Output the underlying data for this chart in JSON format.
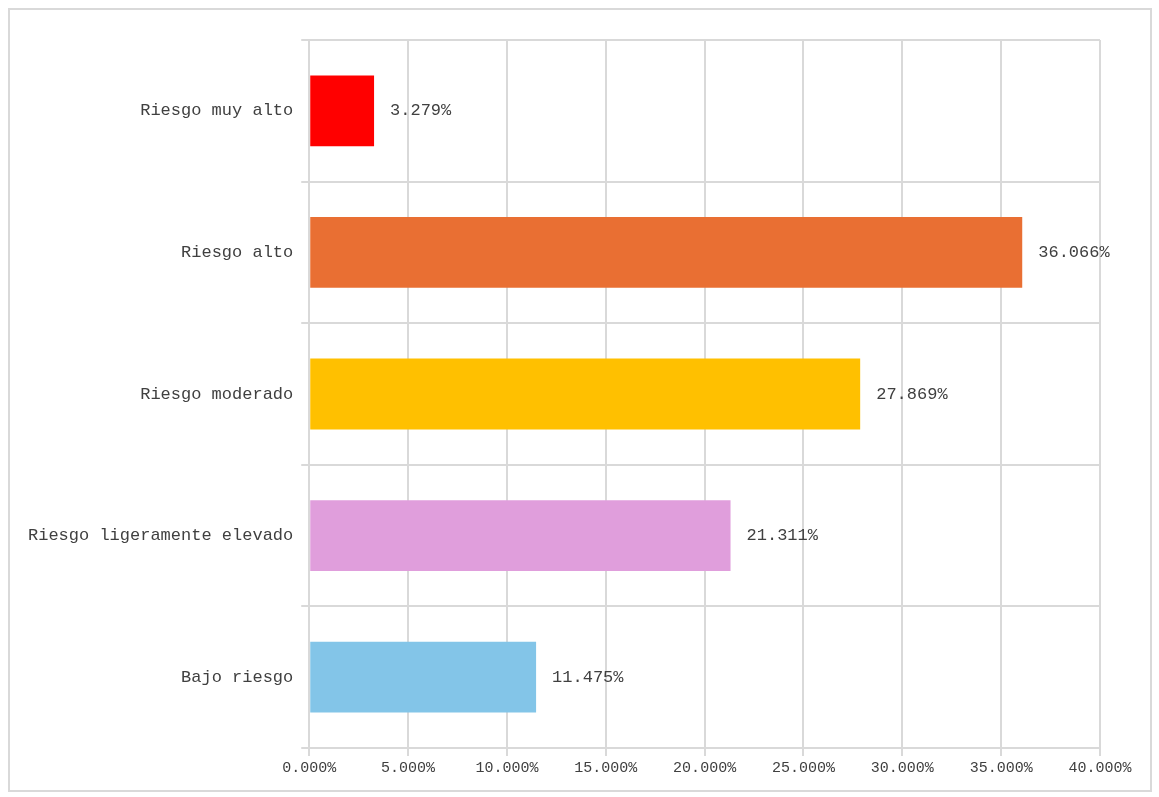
{
  "chart_data": {
    "type": "bar",
    "orientation": "horizontal",
    "categories": [
      "Riesgo muy alto",
      "Riesgo alto",
      "Riesgo moderado",
      "Riesgo ligeramente elevado",
      "Bajo riesgo"
    ],
    "values": [
      3.279,
      36.066,
      27.869,
      21.311,
      11.475
    ],
    "colors": [
      "#ff0000",
      "#e96f33",
      "#ffc000",
      "#e09edc",
      "#83c5e8"
    ],
    "value_labels": [
      "3.279%",
      "36.066%",
      "27.869%",
      "21.311%",
      "11.475%"
    ],
    "xlim": [
      0,
      40
    ],
    "xticks": [
      {
        "value": 0,
        "label": "0.000%"
      },
      {
        "value": 5,
        "label": "5.000%"
      },
      {
        "value": 10,
        "label": "10.000%"
      },
      {
        "value": 15,
        "label": "15.000%"
      },
      {
        "value": 20,
        "label": "20.000%"
      },
      {
        "value": 25,
        "label": "25.000%"
      },
      {
        "value": 30,
        "label": "30.000%"
      },
      {
        "value": 35,
        "label": "35.000%"
      },
      {
        "value": 40,
        "label": "40.000%"
      }
    ],
    "grid": true,
    "legend": false
  }
}
